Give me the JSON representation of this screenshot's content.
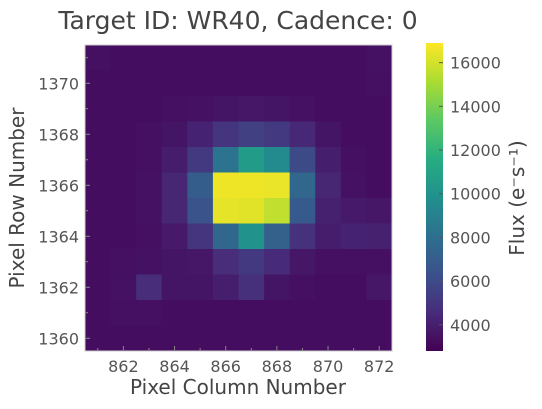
{
  "chart_data": {
    "type": "heatmap",
    "title": "Target ID: WR40, Cadence: 0",
    "xlabel": "Pixel Column Number",
    "ylabel": "Pixel Row Number",
    "colorbar_label": "Flux (e⁻s⁻¹)",
    "colormap": "viridis",
    "x_range": [
      860.5,
      872.5
    ],
    "y_range": [
      1359.5,
      1371.5
    ],
    "x_ticks": [
      862,
      864,
      866,
      868,
      870,
      872
    ],
    "y_ticks": [
      1360,
      1362,
      1364,
      1366,
      1368,
      1370
    ],
    "colorbar_range": [
      2800,
      16900
    ],
    "colorbar_ticks": [
      4000,
      6000,
      8000,
      10000,
      12000,
      14000,
      16000
    ],
    "columns": [
      861,
      862,
      863,
      864,
      865,
      866,
      867,
      868,
      869,
      870,
      871,
      872
    ],
    "rows": [
      1371,
      1370,
      1369,
      1368,
      1367,
      1366,
      1365,
      1364,
      1363,
      1362,
      1361,
      1360
    ],
    "values": [
      [
        3400,
        3300,
        3300,
        3300,
        3300,
        3300,
        3300,
        3300,
        3300,
        3300,
        3300,
        3500
      ],
      [
        3300,
        3300,
        3300,
        3300,
        3300,
        3300,
        3300,
        3300,
        3300,
        3300,
        3300,
        3400
      ],
      [
        3300,
        3300,
        3300,
        3400,
        3500,
        3600,
        3700,
        3600,
        3500,
        3300,
        3300,
        3300
      ],
      [
        3300,
        3300,
        3400,
        3600,
        4200,
        5000,
        5500,
        5200,
        4400,
        3600,
        3300,
        3300
      ],
      [
        3300,
        3300,
        3400,
        3900,
        5200,
        8200,
        10500,
        9500,
        6000,
        4000,
        3400,
        3300
      ],
      [
        3300,
        3300,
        3500,
        4300,
        7000,
        16600,
        16600,
        16500,
        7500,
        4300,
        3500,
        3300
      ],
      [
        3300,
        3300,
        3500,
        4300,
        6500,
        16400,
        16300,
        15600,
        6800,
        4100,
        3800,
        3700
      ],
      [
        3300,
        3300,
        3400,
        3800,
        5000,
        7500,
        10000,
        7200,
        4800,
        3900,
        4200,
        4100
      ],
      [
        3300,
        3400,
        3500,
        3600,
        3700,
        4600,
        5200,
        4500,
        3700,
        3400,
        3400,
        3400
      ],
      [
        3300,
        3500,
        4600,
        3600,
        3600,
        4000,
        4700,
        3600,
        3400,
        3300,
        3300,
        3700
      ],
      [
        3300,
        3400,
        3400,
        3300,
        3300,
        3300,
        3300,
        3300,
        3300,
        3300,
        3300,
        3300
      ],
      [
        3300,
        3300,
        3300,
        3300,
        3300,
        3300,
        3300,
        3300,
        3300,
        3300,
        3300,
        3300
      ]
    ]
  }
}
